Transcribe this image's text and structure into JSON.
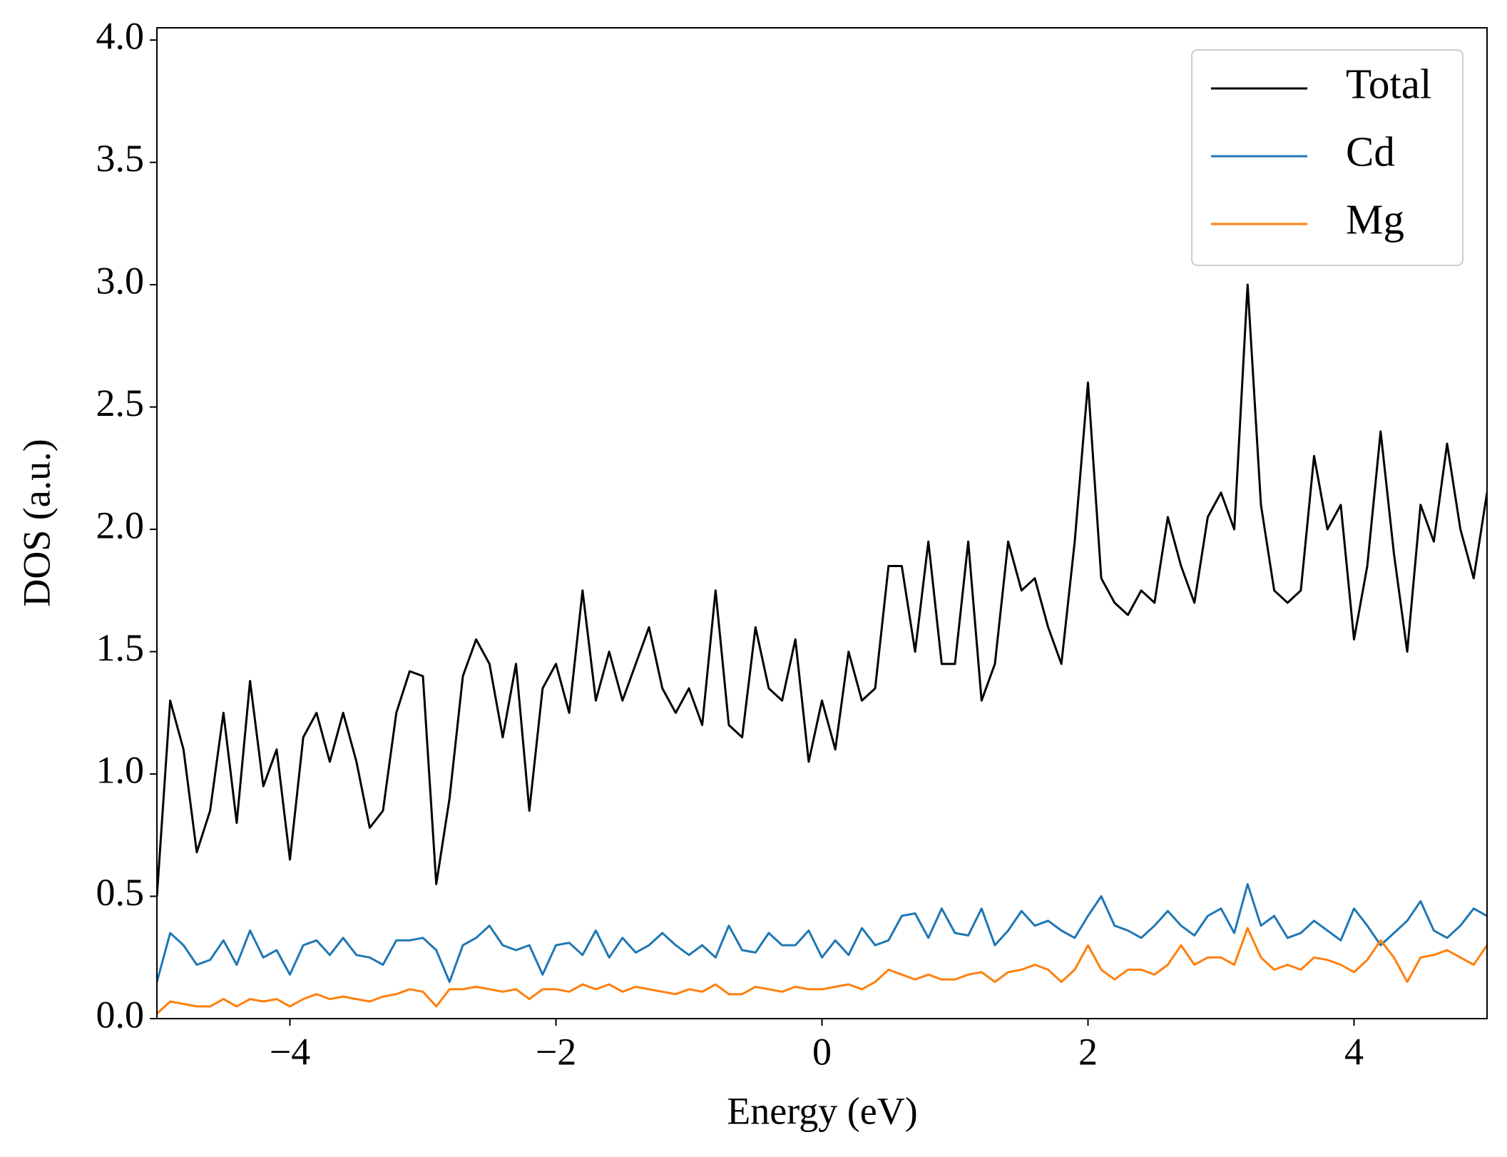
{
  "chart_data": {
    "type": "line",
    "xlabel": "Energy (eV)",
    "ylabel": "DOS (a.u.)",
    "x": [
      -5,
      -4.9,
      -4.8,
      -4.7,
      -4.6,
      -4.5,
      -4.4,
      -4.3,
      -4.2,
      -4.1,
      -4,
      -3.9,
      -3.8,
      -3.7,
      -3.6,
      -3.5,
      -3.4,
      -3.3,
      -3.2,
      -3.1,
      -3,
      -2.9,
      -2.8,
      -2.7,
      -2.6,
      -2.5,
      -2.4,
      -2.3,
      -2.2,
      -2.1,
      -2,
      -1.9,
      -1.8,
      -1.7,
      -1.6,
      -1.5,
      -1.4,
      -1.3,
      -1.2,
      -1.1,
      -1,
      -0.9,
      -0.8,
      -0.7,
      -0.6,
      -0.5,
      -0.4,
      -0.3,
      -0.2,
      -0.1,
      0,
      0.1,
      0.2,
      0.3,
      0.4,
      0.5,
      0.6,
      0.7,
      0.8,
      0.9,
      1,
      1.1,
      1.2,
      1.3,
      1.4,
      1.5,
      1.6,
      1.7,
      1.8,
      1.9,
      2,
      2.1,
      2.2,
      2.3,
      2.4,
      2.5,
      2.6,
      2.7,
      2.8,
      2.9,
      3,
      3.1,
      3.2,
      3.3,
      3.4,
      3.5,
      3.6,
      3.7,
      3.8,
      3.9,
      4,
      4.1,
      4.2,
      4.3,
      4.4,
      4.5,
      4.6,
      4.7,
      4.8,
      4.9,
      5
    ],
    "series": [
      {
        "name": "Total",
        "color": "#000000",
        "values": [
          0.5,
          1.3,
          1.1,
          0.68,
          0.85,
          1.25,
          0.8,
          1.38,
          0.95,
          1.1,
          0.65,
          1.15,
          1.25,
          1.05,
          1.25,
          1.05,
          0.78,
          0.85,
          1.25,
          1.42,
          1.4,
          0.55,
          0.9,
          1.4,
          1.55,
          1.45,
          1.15,
          1.45,
          0.85,
          1.35,
          1.45,
          1.25,
          1.75,
          1.3,
          1.5,
          1.3,
          1.45,
          1.6,
          1.35,
          1.25,
          1.35,
          1.2,
          1.75,
          1.2,
          1.15,
          1.6,
          1.35,
          1.3,
          1.55,
          1.05,
          1.3,
          1.1,
          1.5,
          1.3,
          1.35,
          1.85,
          1.85,
          1.5,
          1.95,
          1.45,
          1.45,
          1.95,
          1.3,
          1.45,
          1.95,
          1.75,
          1.8,
          1.6,
          1.45,
          1.95,
          2.6,
          1.8,
          1.7,
          1.65,
          1.75,
          1.7,
          2.05,
          1.85,
          1.7,
          2.05,
          2.15,
          2.0,
          3.0,
          2.1,
          1.75,
          1.7,
          1.75,
          2.3,
          2.0,
          2.1,
          1.55,
          1.85,
          2.4,
          1.9,
          1.5,
          2.1,
          1.95,
          2.35,
          2.0,
          1.8,
          2.15
        ]
      },
      {
        "name": "Cd",
        "color": "#1f77b4",
        "values": [
          0.15,
          0.35,
          0.3,
          0.22,
          0.24,
          0.32,
          0.22,
          0.36,
          0.25,
          0.28,
          0.18,
          0.3,
          0.32,
          0.26,
          0.33,
          0.26,
          0.25,
          0.22,
          0.32,
          0.32,
          0.33,
          0.28,
          0.15,
          0.3,
          0.33,
          0.38,
          0.3,
          0.28,
          0.3,
          0.18,
          0.3,
          0.31,
          0.26,
          0.36,
          0.25,
          0.33,
          0.27,
          0.3,
          0.35,
          0.3,
          0.26,
          0.3,
          0.25,
          0.38,
          0.28,
          0.27,
          0.35,
          0.3,
          0.3,
          0.36,
          0.25,
          0.32,
          0.26,
          0.37,
          0.3,
          0.32,
          0.42,
          0.43,
          0.33,
          0.45,
          0.35,
          0.34,
          0.45,
          0.3,
          0.36,
          0.44,
          0.38,
          0.4,
          0.36,
          0.33,
          0.42,
          0.5,
          0.38,
          0.36,
          0.33,
          0.38,
          0.44,
          0.38,
          0.34,
          0.42,
          0.45,
          0.35,
          0.55,
          0.38,
          0.42,
          0.33,
          0.35,
          0.4,
          0.36,
          0.32,
          0.45,
          0.38,
          0.3,
          0.35,
          0.4,
          0.48,
          0.36,
          0.33,
          0.38,
          0.45,
          0.42
        ]
      },
      {
        "name": "Mg",
        "color": "#ff7f0e",
        "values": [
          0.02,
          0.07,
          0.06,
          0.05,
          0.05,
          0.08,
          0.05,
          0.08,
          0.07,
          0.08,
          0.05,
          0.08,
          0.1,
          0.08,
          0.09,
          0.08,
          0.07,
          0.09,
          0.1,
          0.12,
          0.11,
          0.05,
          0.12,
          0.12,
          0.13,
          0.12,
          0.11,
          0.12,
          0.08,
          0.12,
          0.12,
          0.11,
          0.14,
          0.12,
          0.14,
          0.11,
          0.13,
          0.12,
          0.11,
          0.1,
          0.12,
          0.11,
          0.14,
          0.1,
          0.1,
          0.13,
          0.12,
          0.11,
          0.13,
          0.12,
          0.12,
          0.13,
          0.14,
          0.12,
          0.15,
          0.2,
          0.18,
          0.16,
          0.18,
          0.16,
          0.16,
          0.18,
          0.19,
          0.15,
          0.19,
          0.2,
          0.22,
          0.2,
          0.15,
          0.2,
          0.3,
          0.2,
          0.16,
          0.2,
          0.2,
          0.18,
          0.22,
          0.3,
          0.22,
          0.25,
          0.25,
          0.22,
          0.37,
          0.25,
          0.2,
          0.22,
          0.2,
          0.25,
          0.24,
          0.22,
          0.19,
          0.24,
          0.32,
          0.25,
          0.15,
          0.25,
          0.26,
          0.28,
          0.25,
          0.22,
          0.3
        ]
      }
    ],
    "xlim": [
      -5,
      5
    ],
    "xticks": [
      {
        "value": -4,
        "label": "−4"
      },
      {
        "value": -2,
        "label": "−2"
      },
      0,
      2,
      4
    ],
    "ylim": [
      0,
      4.05
    ],
    "yticks": [
      {
        "value": 0,
        "label": "0.0"
      },
      {
        "value": 0.5,
        "label": "0.5"
      },
      {
        "value": 1,
        "label": "1.0"
      },
      {
        "value": 1.5,
        "label": "1.5"
      },
      {
        "value": 2,
        "label": "2.0"
      },
      {
        "value": 2.5,
        "label": "2.5"
      },
      {
        "value": 3,
        "label": "3.0"
      },
      {
        "value": 3.5,
        "label": "3.5"
      },
      {
        "value": 4,
        "label": "4.0"
      }
    ],
    "legend": "upper right",
    "grid": false
  }
}
